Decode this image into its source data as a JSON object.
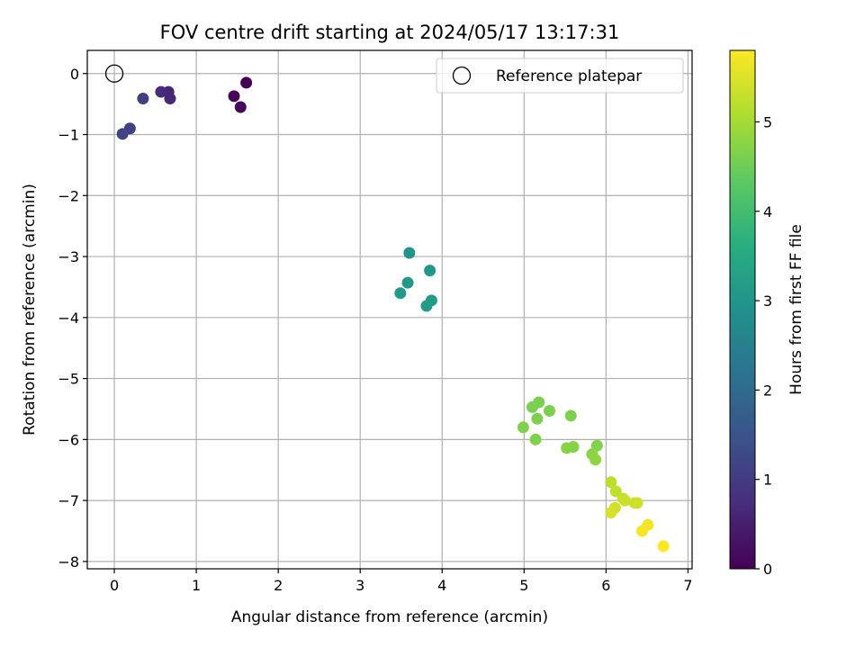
{
  "chart_data": {
    "type": "scatter",
    "title": "FOV centre drift starting at 2024/05/17 13:17:31",
    "xlabel": "Angular distance from reference (arcmin)",
    "ylabel": "Rotation from reference (arcmin)",
    "xlim": [
      -0.33,
      7.05
    ],
    "ylim": [
      -8.12,
      0.38
    ],
    "x_ticks": [
      0,
      1,
      2,
      3,
      4,
      5,
      6,
      7
    ],
    "y_ticks": [
      0,
      -1,
      -2,
      -3,
      -4,
      -5,
      -6,
      -7,
      -8
    ],
    "x_tick_labels": [
      "0",
      "1",
      "2",
      "3",
      "4",
      "5",
      "6",
      "7"
    ],
    "y_tick_labels": [
      "0",
      "−1",
      "−2",
      "−3",
      "−4",
      "−5",
      "−6",
      "−7",
      "−8"
    ],
    "grid": true,
    "colormap": "viridis",
    "colorbar": {
      "label": "Hours from first FF file",
      "range": [
        0,
        5.8
      ],
      "ticks": [
        0,
        1,
        2,
        3,
        4,
        5
      ],
      "tick_labels": [
        "0",
        "1",
        "2",
        "3",
        "4",
        "5"
      ]
    },
    "legend": {
      "placement": "top-right",
      "entries": [
        {
          "label": "Reference platepar",
          "marker": "hollow-circle"
        }
      ]
    },
    "reference_point": {
      "x": 0,
      "y": 0
    },
    "points": [
      {
        "x": 1.61,
        "y": -0.15,
        "hours": 0.0
      },
      {
        "x": 1.46,
        "y": -0.37,
        "hours": 0.05
      },
      {
        "x": 1.54,
        "y": -0.55,
        "hours": 0.1
      },
      {
        "x": 0.66,
        "y": -0.3,
        "hours": 0.6
      },
      {
        "x": 0.68,
        "y": -0.41,
        "hours": 0.65
      },
      {
        "x": 0.57,
        "y": -0.3,
        "hours": 0.7
      },
      {
        "x": 0.35,
        "y": -0.41,
        "hours": 1.05
      },
      {
        "x": 0.19,
        "y": -0.9,
        "hours": 1.1
      },
      {
        "x": 0.1,
        "y": -0.99,
        "hours": 1.15
      },
      {
        "x": 3.6,
        "y": -2.94,
        "hours": 3.0
      },
      {
        "x": 3.85,
        "y": -3.23,
        "hours": 3.05
      },
      {
        "x": 3.58,
        "y": -3.43,
        "hours": 3.08
      },
      {
        "x": 3.49,
        "y": -3.6,
        "hours": 3.1
      },
      {
        "x": 3.87,
        "y": -3.72,
        "hours": 3.12
      },
      {
        "x": 3.81,
        "y": -3.81,
        "hours": 3.15
      },
      {
        "x": 5.18,
        "y": -5.39,
        "hours": 4.6
      },
      {
        "x": 5.1,
        "y": -5.47,
        "hours": 4.6
      },
      {
        "x": 5.31,
        "y": -5.53,
        "hours": 4.62
      },
      {
        "x": 5.57,
        "y": -5.61,
        "hours": 4.63
      },
      {
        "x": 5.16,
        "y": -5.66,
        "hours": 4.63
      },
      {
        "x": 4.99,
        "y": -5.8,
        "hours": 4.65
      },
      {
        "x": 5.14,
        "y": -6.0,
        "hours": 4.66
      },
      {
        "x": 5.89,
        "y": -6.1,
        "hours": 4.67
      },
      {
        "x": 5.6,
        "y": -6.12,
        "hours": 4.7
      },
      {
        "x": 5.52,
        "y": -6.14,
        "hours": 4.72
      },
      {
        "x": 5.83,
        "y": -6.24,
        "hours": 4.75
      },
      {
        "x": 5.87,
        "y": -6.33,
        "hours": 4.8
      },
      {
        "x": 6.06,
        "y": -6.7,
        "hours": 5.2
      },
      {
        "x": 6.12,
        "y": -6.85,
        "hours": 5.25
      },
      {
        "x": 6.21,
        "y": -6.97,
        "hours": 5.3
      },
      {
        "x": 6.23,
        "y": -7.0,
        "hours": 5.32
      },
      {
        "x": 6.35,
        "y": -7.04,
        "hours": 5.35
      },
      {
        "x": 6.38,
        "y": -7.04,
        "hours": 5.37
      },
      {
        "x": 6.11,
        "y": -7.12,
        "hours": 5.4
      },
      {
        "x": 6.06,
        "y": -7.2,
        "hours": 5.45
      },
      {
        "x": 6.51,
        "y": -7.4,
        "hours": 5.7
      },
      {
        "x": 6.44,
        "y": -7.5,
        "hours": 5.75
      },
      {
        "x": 6.7,
        "y": -7.75,
        "hours": 5.8
      }
    ]
  }
}
